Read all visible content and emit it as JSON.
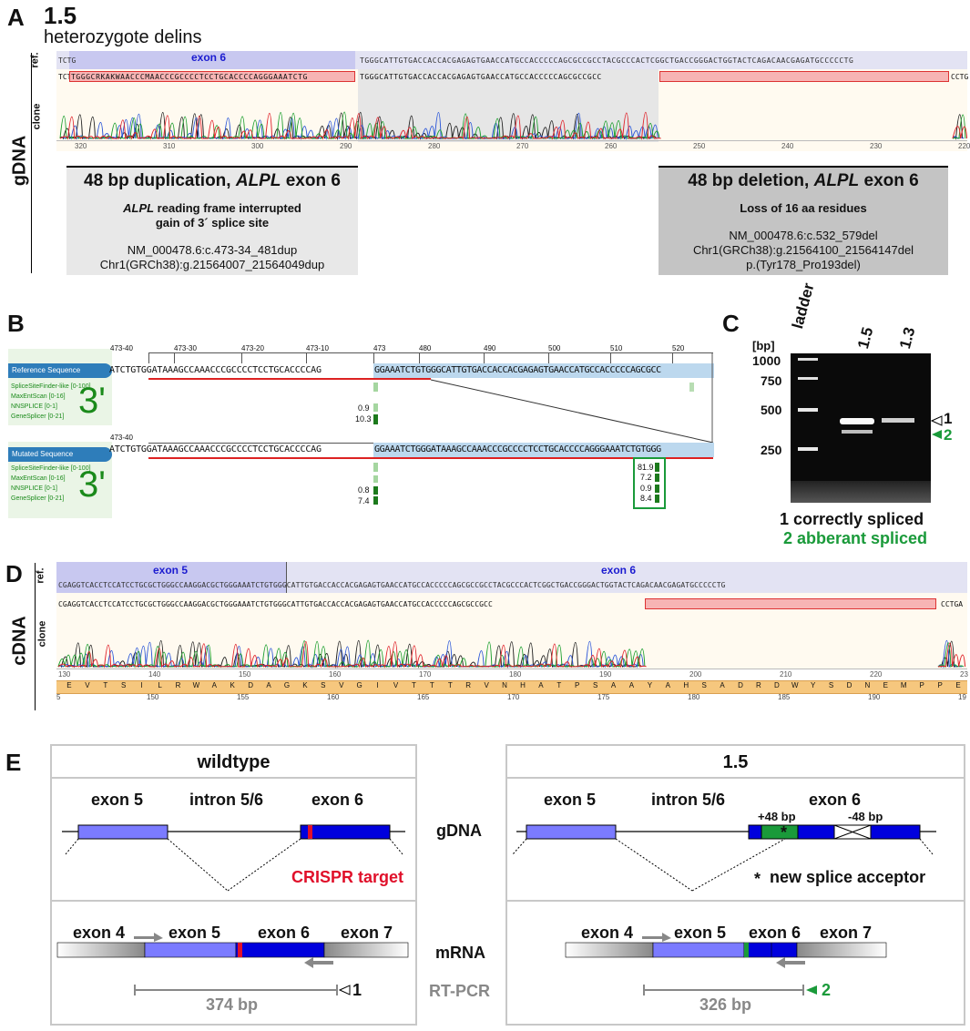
{
  "panelA": {
    "letter": "A",
    "title": "1.5",
    "subtitle": "heterozygote delins",
    "side": "gDNA",
    "ref": "ref.",
    "clone": "clone",
    "exon": "exon 6",
    "ref_left": "TCTG",
    "ref_seq": "TGGGCATTGTGACCACCACGAGAGTGAACCATGCCACCCCCAGCGCCGCCTACGCCCACTCGGCTGACCGGGACTGGTACTCAGACAACGAGATGCCCCCTG",
    "clone_left": "TCTG",
    "clone_red": "TGGGCRKAKWAACCCMAACCCGCCCCTCCTGCACCCCAGGGAAATCTG",
    "clone_mid": "TGGGCATTGTGACCACCACGAGAGTGAACCATGCCACCCCCAGCGCCGCC",
    "clone_right": "CCTG",
    "ticks": [
      "320",
      "310",
      "300",
      "290",
      "280",
      "270",
      "260",
      "250",
      "240",
      "230",
      "220"
    ],
    "dup_title_1": "48 bp duplication, ",
    "dup_title_2": "ALPL",
    "dup_title_3": " exon 6",
    "dup_line1_a": "ALPL",
    "dup_line1_b": " reading frame interrupted",
    "dup_line2": "gain of 3´ splice site",
    "dup_line3": "NM_000478.6:c.473-34_481dup",
    "dup_line4": "Chr1(GRCh38):g.21564007_21564049dup",
    "del_title_1": "48 bp deletion, ",
    "del_title_2": "ALPL",
    "del_title_3": " exon 6",
    "del_line1": "Loss of 16 aa residues",
    "del_line2": "NM_000478.6:c.532_579del",
    "del_line3": "Chr1(GRCh38):g.21564100_21564147del",
    "del_line4": "p.(Tyr178_Pro193del)"
  },
  "panelB": {
    "letter": "B",
    "ref_header": "Reference Sequence",
    "mut_header": "Mutated Sequence",
    "tools": [
      "SpliceSiteFinder-like [0-100]",
      "MaxEntScan [0-16]",
      "NNSPLICE [0-1]",
      "GeneSplicer [0-21]"
    ],
    "big3": "3'",
    "positions": [
      "473-40",
      "473-30",
      "473-20",
      "473-10",
      "473",
      "480",
      "490",
      "500",
      "510",
      "520"
    ],
    "pos_mut": "473-40",
    "ref_seq_intron": "ATCTGTGGATAAAGCCAAACCCGCCCCTCCTGCACCCCAG",
    "ref_seq_exon": "GGAAATCTGTGGGCATTGTGACCACCACGAGAGTGAACCATGCCACCCCCAGCGCC",
    "mut_seq_intron": "ATCTGTGGATAAAGCCAAACCCGCCCCTCCTGCACCCCAG",
    "mut_seq_exon": "GGAAATCTGGGATAAAGCCAAACCCGCCCCTCCTGCACCCCAGGGAAATCTGTGGG",
    "ref_scores": [
      "0.9",
      "10.3"
    ],
    "mut_scores_left": [
      "0.8",
      "7.4"
    ],
    "mut_scores_right": [
      "81.9",
      "7.2",
      "0.9",
      "8.4"
    ]
  },
  "panelC": {
    "letter": "C",
    "bp": "[bp]",
    "ladder": "ladder",
    "lane1": "1.5",
    "lane2": "1.3",
    "sizes": [
      "1000",
      "750",
      "500",
      "250"
    ],
    "band1": "1",
    "band2": "2",
    "legend1": "1 correctly spliced",
    "legend2": "2 abberant spliced"
  },
  "panelD": {
    "letter": "D",
    "side": "cDNA",
    "ref": "ref.",
    "clone": "clone",
    "exon5": "exon 5",
    "exon6": "exon 6",
    "ref_seq": "CGAGGTCACCTCCATCCTGCGCTGGGCCAAGGACGCTGGGAAATCTGTGGGCATTGTGACCACCACGAGAGTGAACCATGCCACCCCCAGCGCCGCCTACGCCCACTCGGCTGACCGGGACTGGTACTCAGACAACGAGATGCCCCCTG",
    "clone_seq": "CGAGGTCACCTCCATCCTGCGCTGGGCCAAGGACGCTGGGAAATCTGTGGGCATTGTGACCACCACGAGAGTGAACCATGCCACCCCCAGCGCCGCC",
    "clone_right": "CCTGA",
    "ticks": [
      "130",
      "140",
      "150",
      "160",
      "170",
      "180",
      "190",
      "200",
      "210",
      "220",
      "23"
    ],
    "aa": [
      "E",
      "V",
      "T",
      "S",
      "I",
      "L",
      "R",
      "W",
      "A",
      "K",
      "D",
      "A",
      "G",
      "K",
      "S",
      "V",
      "G",
      "I",
      "V",
      "T",
      "T",
      "T",
      "R",
      "V",
      "N",
      "H",
      "A",
      "T",
      "P",
      "S",
      "A",
      "A",
      "Y",
      "A",
      "H",
      "S",
      "A",
      "D",
      "R",
      "D",
      "W",
      "Y",
      "S",
      "D",
      "N",
      "E",
      "M",
      "P",
      "P",
      "E"
    ],
    "aa_ticks": [
      "5",
      "150",
      "155",
      "160",
      "165",
      "170",
      "175",
      "180",
      "185",
      "190",
      "19"
    ]
  },
  "panelE": {
    "letter": "E",
    "wt_title": "wildtype",
    "mut_title": "1.5",
    "exon5": "exon 5",
    "intron": "intron 5/6",
    "exon6": "exon 6",
    "gdna": "gDNA",
    "mrna": "mRNA",
    "rtpcr": "RT-PCR",
    "crispr": "CRISPR target",
    "plus48": "+48 bp",
    "minus48": "-48 bp",
    "new_acceptor": "new splice acceptor",
    "star": "*",
    "exon4": "exon 4",
    "exon7": "exon 7",
    "wt_size": "374 bp",
    "mut_size": "326 bp",
    "wt_band": "1",
    "mut_band": "2"
  },
  "colors": {
    "exon_light": "#7b7bff",
    "exon_dark": "#0000dd",
    "green": "#1a9a3a",
    "red": "#e0102a",
    "grid": "#c8c8c8"
  }
}
